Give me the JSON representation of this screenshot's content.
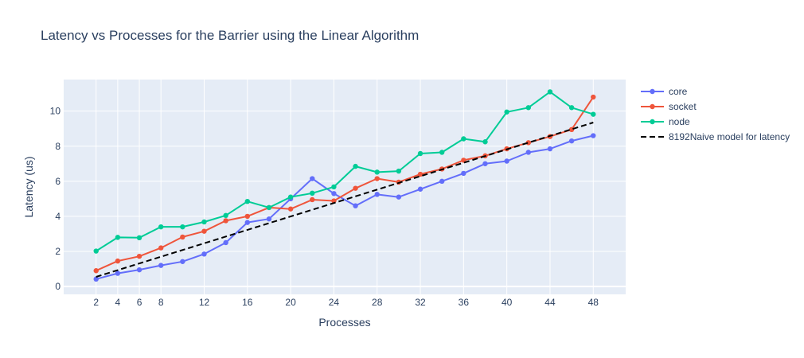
{
  "chart_data": {
    "type": "line",
    "title": "Latency vs Processes for the Barrier using the Linear Algorithm",
    "xlabel": "Processes",
    "ylabel": "Latency (us)",
    "x_tick_labels": [
      "2",
      "4",
      "6",
      "8",
      "12",
      "16",
      "20",
      "24",
      "28",
      "32",
      "36",
      "40",
      "44",
      "48"
    ],
    "y_tick_labels": [
      "0",
      "2",
      "4",
      "6",
      "8",
      "10"
    ],
    "xlim": [
      -1,
      51
    ],
    "ylim": [
      -0.45,
      11.8
    ],
    "x": [
      2,
      4,
      6,
      8,
      10,
      12,
      14,
      16,
      18,
      20,
      22,
      24,
      26,
      28,
      30,
      32,
      34,
      36,
      38,
      40,
      42,
      44,
      46,
      48
    ],
    "series": [
      {
        "name": "core",
        "color": "#636efa",
        "mode": "lines+markers",
        "values": [
          0.42,
          0.75,
          0.95,
          1.2,
          1.42,
          1.85,
          2.5,
          3.65,
          3.85,
          5.0,
          6.15,
          5.3,
          4.6,
          5.25,
          5.1,
          5.55,
          6.0,
          6.45,
          7.0,
          7.15,
          7.65,
          7.85,
          8.3,
          8.6
        ]
      },
      {
        "name": "socket",
        "color": "#ef553b",
        "mode": "lines+markers",
        "values": [
          0.9,
          1.45,
          1.72,
          2.2,
          2.82,
          3.15,
          3.75,
          4.0,
          4.5,
          4.42,
          4.95,
          4.88,
          5.6,
          6.15,
          5.95,
          6.4,
          6.7,
          7.2,
          7.45,
          7.85,
          8.2,
          8.55,
          8.95,
          10.8
        ]
      },
      {
        "name": "node",
        "color": "#00cc96",
        "mode": "lines+markers",
        "values": [
          2.02,
          2.8,
          2.78,
          3.4,
          3.4,
          3.68,
          4.05,
          4.85,
          4.5,
          5.1,
          5.32,
          5.68,
          6.85,
          6.52,
          6.58,
          7.58,
          7.65,
          8.42,
          8.25,
          9.95,
          10.2,
          11.1,
          10.2,
          9.82
        ]
      },
      {
        "name": "8192Naive model for latency",
        "color": "#000000",
        "mode": "lines",
        "dash": "dash",
        "x": [
          2,
          48
        ],
        "values": [
          0.55,
          9.35
        ]
      }
    ],
    "grid": true,
    "legend_position": "right"
  }
}
